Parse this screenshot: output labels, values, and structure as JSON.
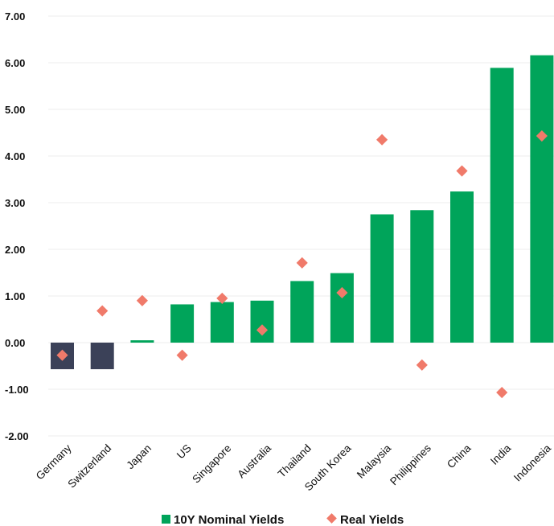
{
  "chart_data": {
    "type": "bar",
    "title": "",
    "xlabel": "",
    "ylabel": "",
    "ylim": [
      -2.0,
      7.0
    ],
    "yticks": [
      "7.00",
      "6.00",
      "5.00",
      "4.00",
      "3.00",
      "2.00",
      "1.00",
      "0.00",
      "-1.00",
      "-2.00"
    ],
    "ytick_values": [
      7,
      6,
      5,
      4,
      3,
      2,
      1,
      0,
      -1,
      -2
    ],
    "grid": true,
    "legend_position": "bottom",
    "categories": [
      "Germany",
      "Switzerland",
      "Japan",
      "US",
      "Singapore",
      "Australia",
      "Thailand",
      "South Korea",
      "Malaysia",
      "Philippines",
      "China",
      "India",
      "Indonesia"
    ],
    "series": [
      {
        "name": "10Y Nominal Yields",
        "kind": "bar",
        "values": [
          -0.57,
          -0.57,
          0.05,
          0.82,
          0.87,
          0.9,
          1.32,
          1.49,
          2.75,
          2.84,
          3.24,
          5.89,
          6.16
        ]
      },
      {
        "name": "Real Yields",
        "kind": "marker",
        "marker": "diamond",
        "values": [
          -0.27,
          0.68,
          0.9,
          -0.27,
          0.95,
          0.27,
          1.71,
          1.07,
          4.35,
          -0.48,
          3.68,
          -1.07,
          4.43
        ]
      }
    ],
    "colors": {
      "positive_bar": "#00A45A",
      "negative_bar": "#3B4158",
      "marker": "#F07A6A",
      "grid": "#EEEEEE"
    }
  }
}
